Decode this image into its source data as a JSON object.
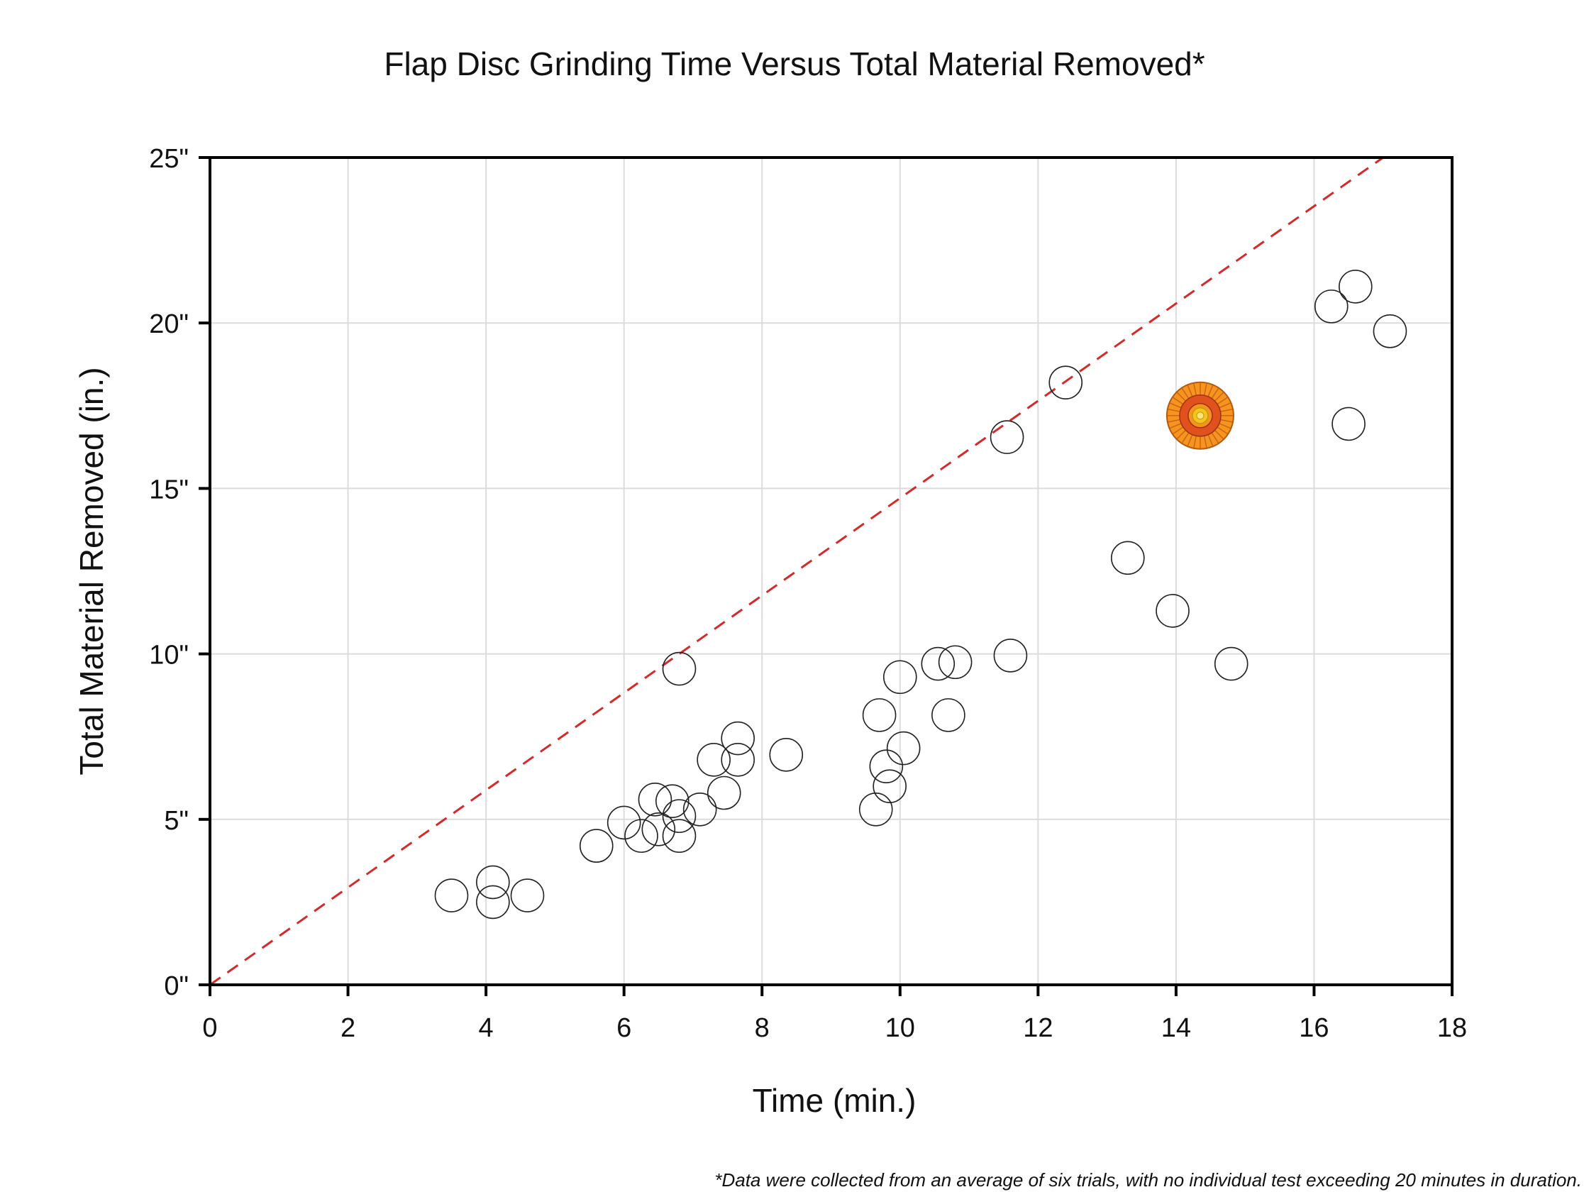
{
  "chart_data": {
    "type": "scatter",
    "title": "Flap Disc Grinding Time Versus Total Material Removed*",
    "xlabel": "Time (min.)",
    "ylabel": "Total Material Removed (in.)",
    "xlim": [
      0,
      18
    ],
    "ylim": [
      0,
      25
    ],
    "x_ticks": [
      0,
      2,
      4,
      6,
      8,
      10,
      12,
      14,
      16,
      18
    ],
    "y_ticks": [
      0,
      5,
      10,
      15,
      20,
      25
    ],
    "x_tick_labels": [
      "0",
      "2",
      "4",
      "6",
      "8",
      "10",
      "12",
      "14",
      "16",
      "18"
    ],
    "y_tick_labels": [
      "0\"",
      "5\"",
      "10\"",
      "15\"",
      "20\"",
      "25\""
    ],
    "grid": true,
    "legend": "none",
    "footnote": "*Data were collected from an average of six trials, with no individual test exceeding 20 minutes in duration.",
    "reference_line": {
      "style": "dashed",
      "color": "#d42a2a",
      "from": [
        0,
        0
      ],
      "to": [
        17.0,
        25
      ]
    },
    "highlight": {
      "x": 14.35,
      "y": 17.2,
      "icon": "flap-disc-icon",
      "colors": [
        "#f7941d",
        "#e2501e",
        "#f5c518"
      ]
    },
    "points": [
      {
        "x": 3.5,
        "y": 2.7
      },
      {
        "x": 4.1,
        "y": 3.1
      },
      {
        "x": 4.1,
        "y": 2.5
      },
      {
        "x": 4.6,
        "y": 2.7
      },
      {
        "x": 5.6,
        "y": 4.2
      },
      {
        "x": 6.0,
        "y": 4.9
      },
      {
        "x": 6.25,
        "y": 4.5
      },
      {
        "x": 6.45,
        "y": 5.6
      },
      {
        "x": 6.5,
        "y": 4.7
      },
      {
        "x": 6.7,
        "y": 5.55
      },
      {
        "x": 6.8,
        "y": 5.1
      },
      {
        "x": 6.8,
        "y": 4.5
      },
      {
        "x": 6.8,
        "y": 9.55
      },
      {
        "x": 7.1,
        "y": 5.3
      },
      {
        "x": 7.3,
        "y": 6.8
      },
      {
        "x": 7.45,
        "y": 5.8
      },
      {
        "x": 7.65,
        "y": 6.8
      },
      {
        "x": 7.65,
        "y": 7.45
      },
      {
        "x": 8.35,
        "y": 6.95
      },
      {
        "x": 9.65,
        "y": 5.3
      },
      {
        "x": 9.7,
        "y": 8.15
      },
      {
        "x": 9.8,
        "y": 6.6
      },
      {
        "x": 9.85,
        "y": 6.0
      },
      {
        "x": 10.0,
        "y": 9.3
      },
      {
        "x": 10.05,
        "y": 7.15
      },
      {
        "x": 10.55,
        "y": 9.7
      },
      {
        "x": 10.7,
        "y": 8.15
      },
      {
        "x": 10.8,
        "y": 9.75
      },
      {
        "x": 11.55,
        "y": 16.55
      },
      {
        "x": 11.6,
        "y": 9.95
      },
      {
        "x": 12.4,
        "y": 18.2
      },
      {
        "x": 13.3,
        "y": 12.9
      },
      {
        "x": 13.95,
        "y": 11.3
      },
      {
        "x": 14.8,
        "y": 9.7
      },
      {
        "x": 16.25,
        "y": 20.5
      },
      {
        "x": 16.5,
        "y": 16.95
      },
      {
        "x": 16.6,
        "y": 21.1
      },
      {
        "x": 17.1,
        "y": 19.75
      }
    ]
  }
}
